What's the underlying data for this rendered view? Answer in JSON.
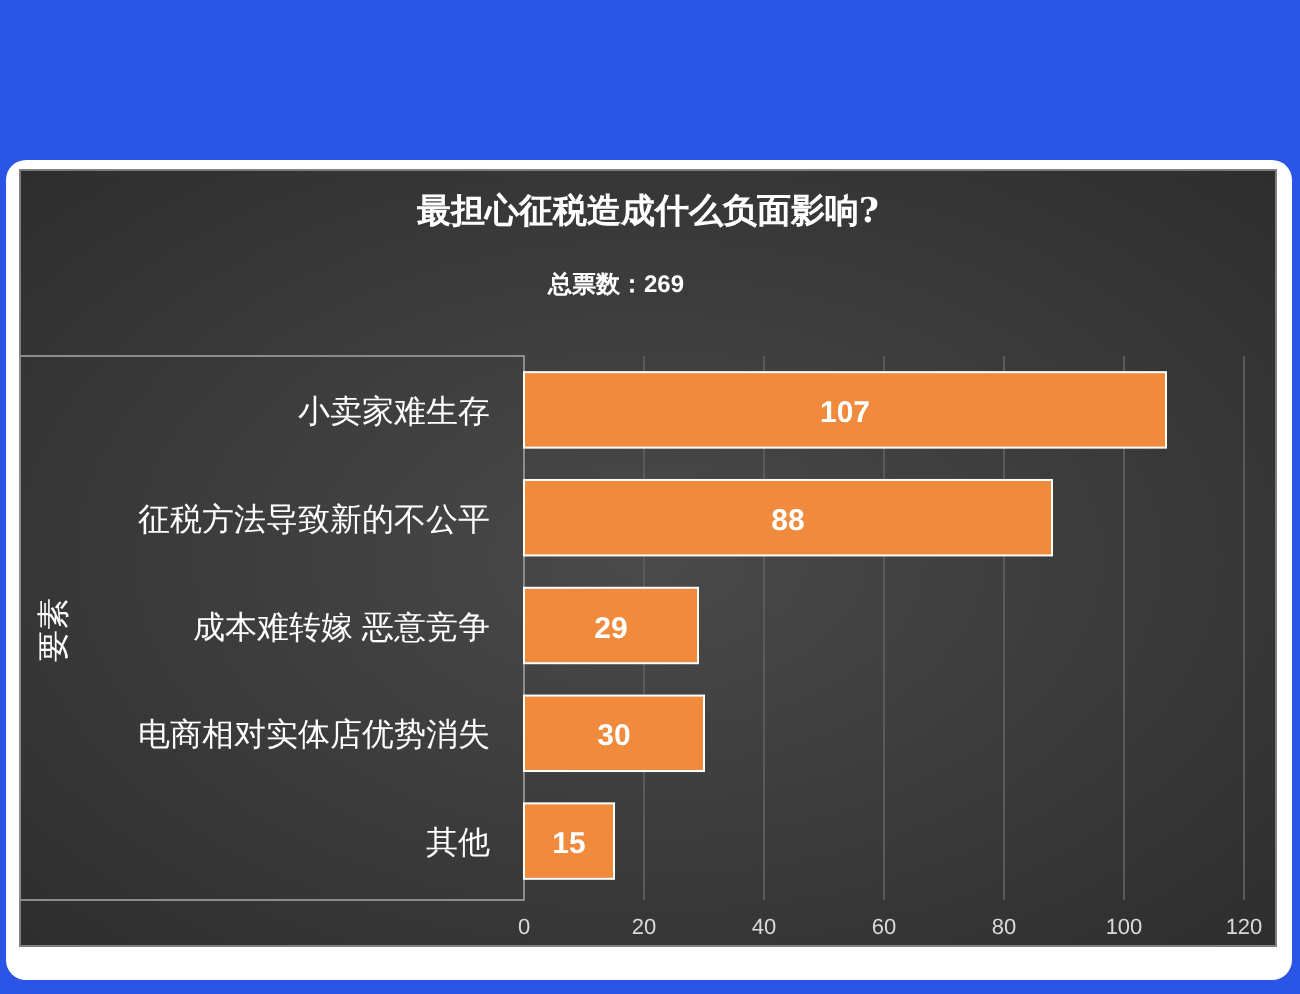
{
  "chart_data": {
    "type": "bar",
    "orientation": "horizontal",
    "title": "最担心征税造成什么负面影响?",
    "subtitle": "总票数：269",
    "ylabel": "要素",
    "categories": [
      "小卖家难生存",
      "征税方法导致新的不公平",
      "成本难转嫁 恶意竞争",
      "电商相对实体店优势消失",
      "其他"
    ],
    "values": [
      107,
      88,
      29,
      30,
      15
    ],
    "color": "#f08a3c",
    "xlim": [
      0,
      120
    ],
    "xticks": [
      0,
      20,
      40,
      60,
      80,
      100,
      120
    ],
    "grid": "x",
    "data_labels": true
  }
}
